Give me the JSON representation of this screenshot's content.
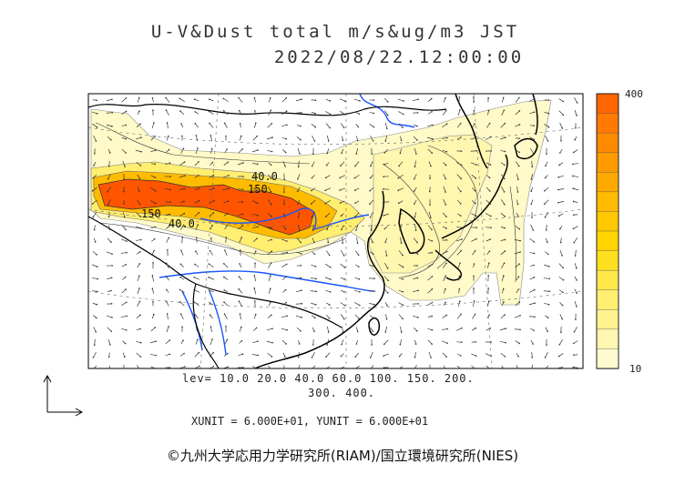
{
  "title_line1": "U-V&Dust total m/s&ug/m3 JST",
  "title_line2": "2022/08/22.12:00:00",
  "colorbar": {
    "max_label": "400",
    "min_label": "10",
    "colors": [
      "#fffbd0",
      "#fff6b0",
      "#fff28f",
      "#ffee70",
      "#ffe84a",
      "#ffe020",
      "#ffd400",
      "#ffc800",
      "#ffbb00",
      "#ffaa00",
      "#ff9a00",
      "#ff8a00",
      "#ff7a00",
      "#ff6600"
    ]
  },
  "levels_line1": "lev= 10.0 20.0 40.0 60.0 100. 150. 200.",
  "levels_line2": "300. 400.",
  "units_line": "XUNIT = 6.000E+01, YUNIT = 6.000E+01",
  "contour_labels": [
    "40.0",
    "150",
    "150",
    "40.0"
  ],
  "credit": "©九州大学応用力学研究所(RIAM)/国立環境研究所(NIES)",
  "colors": {
    "coast": "#000000",
    "river": "#1a55ff",
    "high": "#ff5500",
    "mid": "#ffd21a",
    "low": "#fffac8"
  }
}
